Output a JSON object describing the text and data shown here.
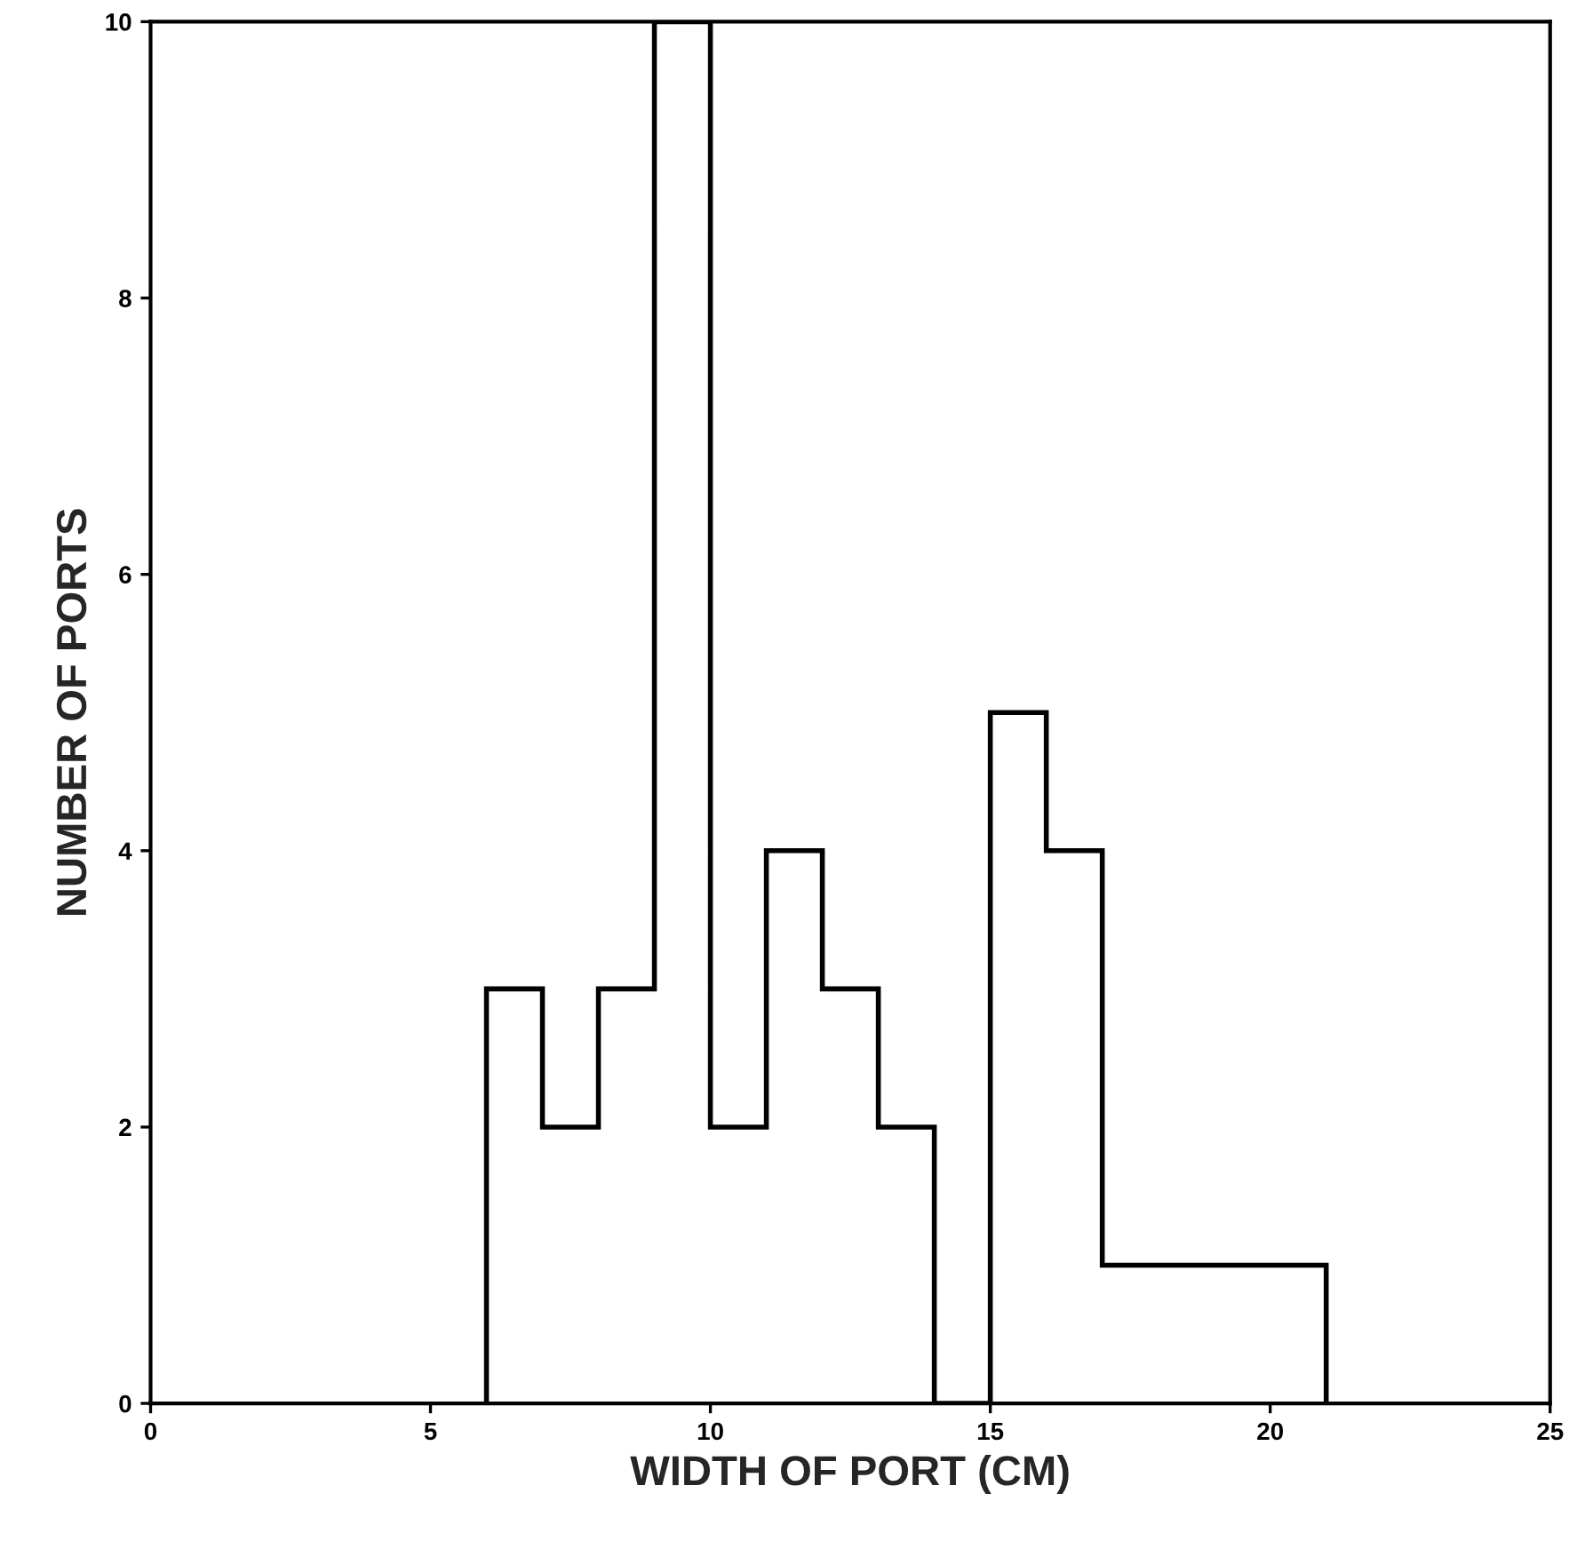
{
  "chart_data": {
    "type": "histogram",
    "xlabel": "WIDTH OF PORT (CM)",
    "ylabel": "NUMBER OF PORTS",
    "bins": [
      6,
      7,
      8,
      9,
      10,
      11,
      12,
      13,
      14,
      15,
      16,
      17,
      18,
      19,
      20,
      21
    ],
    "values": [
      3,
      2,
      3,
      10,
      2,
      4,
      3,
      2,
      0,
      5,
      4,
      1,
      1,
      1,
      1
    ],
    "color": "#000000",
    "xlim": [
      0,
      25
    ],
    "xticks": [
      0,
      5,
      10,
      15,
      20,
      25
    ],
    "ylim": [
      0,
      10
    ],
    "yticks": [
      0,
      2,
      4,
      6,
      8,
      10
    ],
    "grid": false,
    "legend": false
  }
}
